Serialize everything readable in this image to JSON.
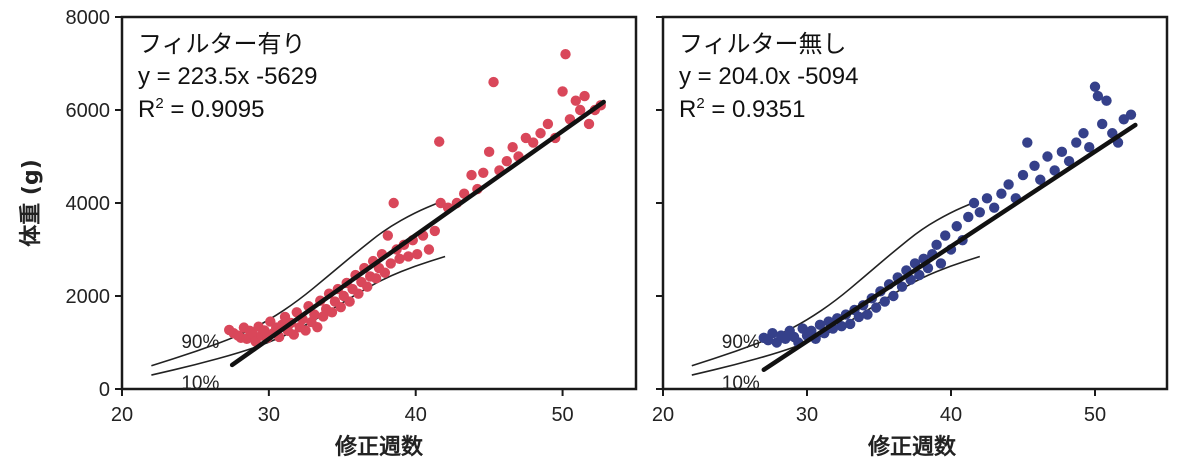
{
  "ylabel": "体重 (g)",
  "chart_data": [
    {
      "type": "scatter",
      "title": "フィルター有り",
      "equation": "y = 223.5x -5629",
      "r2_prefix": "R",
      "r2_sup": "2",
      "r2_value": " = 0.9095",
      "xlabel": "修正週数",
      "ylabel": "体重 (g)",
      "xlim": [
        20,
        55
      ],
      "ylim": [
        0,
        8000
      ],
      "xticks": [
        20,
        30,
        40,
        50
      ],
      "yticks": [
        0,
        2000,
        4000,
        6000,
        8000
      ],
      "point_color": "#d9475a",
      "regression": {
        "slope": 223.5,
        "intercept": -5629,
        "x_range": [
          27.5,
          52.8
        ]
      },
      "percentile_curves": [
        {
          "label": "90%",
          "x": [
            22,
            25,
            28,
            30,
            32,
            34,
            36,
            38,
            40,
            41.5
          ],
          "y": [
            500,
            800,
            1150,
            1480,
            1900,
            2420,
            2950,
            3450,
            3800,
            4000
          ]
        },
        {
          "label": "10%",
          "x": [
            22,
            25,
            28,
            30,
            32,
            34,
            36,
            38,
            40,
            42
          ],
          "y": [
            300,
            520,
            780,
            1000,
            1280,
            1650,
            2050,
            2400,
            2650,
            2850
          ]
        }
      ],
      "points": [
        [
          27.3,
          1270
        ],
        [
          27.6,
          1200
        ],
        [
          27.9,
          1150
        ],
        [
          28.1,
          1100
        ],
        [
          28.3,
          1320
        ],
        [
          28.5,
          1080
        ],
        [
          28.7,
          1250
        ],
        [
          28.9,
          1180
        ],
        [
          29.1,
          1020
        ],
        [
          29.3,
          1340
        ],
        [
          29.5,
          1150
        ],
        [
          29.7,
          1260
        ],
        [
          29.9,
          1100
        ],
        [
          30.1,
          1450
        ],
        [
          30.3,
          1200
        ],
        [
          30.5,
          1320
        ],
        [
          30.7,
          1120
        ],
        [
          30.9,
          1380
        ],
        [
          31.1,
          1550
        ],
        [
          31.3,
          1250
        ],
        [
          31.5,
          1420
        ],
        [
          31.7,
          1170
        ],
        [
          31.9,
          1650
        ],
        [
          32.1,
          1330
        ],
        [
          32.3,
          1500
        ],
        [
          32.5,
          1260
        ],
        [
          32.7,
          1780
        ],
        [
          32.9,
          1440
        ],
        [
          33.1,
          1600
        ],
        [
          33.3,
          1330
        ],
        [
          33.5,
          1900
        ],
        [
          33.7,
          1560
        ],
        [
          33.9,
          1720
        ],
        [
          34.1,
          2050
        ],
        [
          34.3,
          1650
        ],
        [
          34.5,
          1880
        ],
        [
          34.7,
          2150
        ],
        [
          34.9,
          1760
        ],
        [
          35.1,
          2000
        ],
        [
          35.3,
          2280
        ],
        [
          35.5,
          1880
        ],
        [
          35.7,
          2150
        ],
        [
          35.9,
          2450
        ],
        [
          36.1,
          2050
        ],
        [
          36.3,
          2300
        ],
        [
          36.5,
          2600
        ],
        [
          36.7,
          2200
        ],
        [
          36.9,
          2420
        ],
        [
          37.1,
          2750
        ],
        [
          37.3,
          2380
        ],
        [
          37.5,
          2600
        ],
        [
          37.7,
          2900
        ],
        [
          37.9,
          2500
        ],
        [
          38.1,
          3300
        ],
        [
          38.3,
          2700
        ],
        [
          38.5,
          4000
        ],
        [
          38.7,
          3000
        ],
        [
          38.9,
          2800
        ],
        [
          39.2,
          3100
        ],
        [
          39.5,
          2850
        ],
        [
          39.8,
          3200
        ],
        [
          40.1,
          2900
        ],
        [
          40.5,
          3300
        ],
        [
          40.9,
          3000
        ],
        [
          41.3,
          3400
        ],
        [
          41.6,
          5320
        ],
        [
          41.7,
          4000
        ],
        [
          42.2,
          3900
        ],
        [
          42.8,
          4000
        ],
        [
          43.3,
          4200
        ],
        [
          43.8,
          4600
        ],
        [
          44.2,
          4300
        ],
        [
          44.6,
          4650
        ],
        [
          45.0,
          5100
        ],
        [
          45.3,
          6600
        ],
        [
          45.7,
          4700
        ],
        [
          46.2,
          4900
        ],
        [
          46.6,
          5200
        ],
        [
          47.0,
          5000
        ],
        [
          47.5,
          5400
        ],
        [
          48.0,
          5300
        ],
        [
          48.5,
          5500
        ],
        [
          49.0,
          5700
        ],
        [
          49.5,
          5400
        ],
        [
          50.0,
          6400
        ],
        [
          50.2,
          7200
        ],
        [
          50.5,
          5800
        ],
        [
          50.9,
          6200
        ],
        [
          51.2,
          6000
        ],
        [
          51.5,
          6300
        ],
        [
          51.8,
          5700
        ],
        [
          52.2,
          6000
        ],
        [
          52.6,
          6100
        ]
      ]
    },
    {
      "type": "scatter",
      "title": "フィルター無し",
      "equation": "y = 204.0x -5094",
      "r2_prefix": "R",
      "r2_sup": "2",
      "r2_value": " = 0.9351",
      "xlabel": "修正週数",
      "ylabel": "",
      "xlim": [
        20,
        55
      ],
      "ylim": [
        0,
        8000
      ],
      "xticks": [
        20,
        30,
        40,
        50
      ],
      "yticks": [
        0,
        2000,
        4000,
        6000,
        8000
      ],
      "point_color": "#35408a",
      "regression": {
        "slope": 204.0,
        "intercept": -5094,
        "x_range": [
          27.0,
          52.8
        ]
      },
      "percentile_curves": [
        {
          "label": "90%",
          "x": [
            22,
            25,
            28,
            30,
            32,
            34,
            36,
            38,
            40,
            41.5
          ],
          "y": [
            500,
            800,
            1150,
            1480,
            1900,
            2420,
            2950,
            3450,
            3800,
            4000
          ]
        },
        {
          "label": "10%",
          "x": [
            22,
            25,
            28,
            30,
            32,
            34,
            36,
            38,
            40,
            42
          ],
          "y": [
            300,
            520,
            780,
            1000,
            1280,
            1650,
            2050,
            2400,
            2650,
            2850
          ]
        }
      ],
      "points": [
        [
          27.0,
          1100
        ],
        [
          27.3,
          1050
        ],
        [
          27.6,
          1200
        ],
        [
          27.9,
          1000
        ],
        [
          28.2,
          1150
        ],
        [
          28.5,
          1080
        ],
        [
          28.8,
          1250
        ],
        [
          29.1,
          1120
        ],
        [
          29.4,
          1000
        ],
        [
          29.7,
          1300
        ],
        [
          30.0,
          1150
        ],
        [
          30.3,
          1250
        ],
        [
          30.6,
          1080
        ],
        [
          30.9,
          1380
        ],
        [
          31.2,
          1200
        ],
        [
          31.5,
          1450
        ],
        [
          31.8,
          1300
        ],
        [
          32.1,
          1520
        ],
        [
          32.4,
          1350
        ],
        [
          32.7,
          1600
        ],
        [
          33.0,
          1400
        ],
        [
          33.3,
          1700
        ],
        [
          33.6,
          1550
        ],
        [
          33.9,
          1800
        ],
        [
          34.2,
          1600
        ],
        [
          34.5,
          1950
        ],
        [
          34.8,
          1750
        ],
        [
          35.1,
          2100
        ],
        [
          35.4,
          1880
        ],
        [
          35.7,
          2250
        ],
        [
          36.0,
          2000
        ],
        [
          36.3,
          2400
        ],
        [
          36.6,
          2200
        ],
        [
          36.9,
          2550
        ],
        [
          37.2,
          2350
        ],
        [
          37.5,
          2700
        ],
        [
          37.8,
          2450
        ],
        [
          38.1,
          2800
        ],
        [
          38.4,
          2600
        ],
        [
          38.7,
          2900
        ],
        [
          39.0,
          3100
        ],
        [
          39.3,
          2700
        ],
        [
          39.6,
          3300
        ],
        [
          40.0,
          3000
        ],
        [
          40.4,
          3500
        ],
        [
          40.8,
          3200
        ],
        [
          41.2,
          3700
        ],
        [
          41.6,
          4000
        ],
        [
          42.0,
          3800
        ],
        [
          42.5,
          4100
        ],
        [
          43.0,
          3900
        ],
        [
          43.5,
          4200
        ],
        [
          44.0,
          4400
        ],
        [
          44.5,
          4100
        ],
        [
          45.0,
          4600
        ],
        [
          45.3,
          5300
        ],
        [
          45.8,
          4800
        ],
        [
          46.2,
          4500
        ],
        [
          46.7,
          5000
        ],
        [
          47.2,
          4700
        ],
        [
          47.7,
          5100
        ],
        [
          48.2,
          4900
        ],
        [
          48.7,
          5300
        ],
        [
          49.2,
          5500
        ],
        [
          49.6,
          5200
        ],
        [
          50.0,
          6500
        ],
        [
          50.2,
          6300
        ],
        [
          50.5,
          5700
        ],
        [
          50.8,
          6200
        ],
        [
          51.2,
          5500
        ],
        [
          51.6,
          5300
        ],
        [
          52.0,
          5800
        ],
        [
          52.5,
          5900
        ]
      ]
    }
  ]
}
